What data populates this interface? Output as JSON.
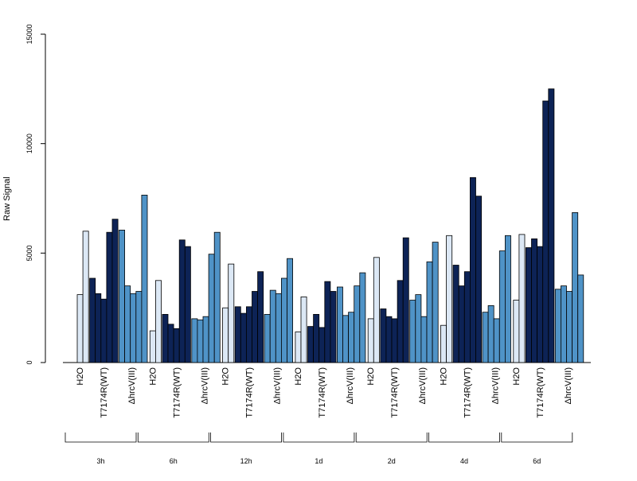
{
  "chart_data": {
    "type": "bar",
    "title": "",
    "xlabel": "",
    "ylabel": "Raw Signal",
    "ylim": [
      0,
      15000
    ],
    "yticks": [
      "0",
      "5000",
      "10000",
      "15000"
    ],
    "grid": false,
    "colors": {
      "H2O": "#dce8f5",
      "T7174R(WT)": "#0d2356",
      "ΔhrcV(III)": "#4f93c7",
      "axis": "#000000"
    },
    "group_labels": [
      "H2O",
      "T7174R(WT)",
      "ΔhrcV(III)"
    ],
    "time_points": [
      "3h",
      "6h",
      "12h",
      "1d",
      "2d",
      "4d",
      "6d"
    ],
    "series": [
      {
        "time": "3h",
        "H2O": [
          3100,
          6000
        ],
        "T7174R(WT)": [
          3850,
          3150,
          2900,
          5950,
          6550
        ],
        "ΔhrcV(III)": [
          6050,
          3500,
          3150,
          3250,
          7650
        ]
      },
      {
        "time": "6h",
        "H2O": [
          1450,
          3750
        ],
        "T7174R(WT)": [
          2200,
          1750,
          1550,
          5600,
          5300
        ],
        "ΔhrcV(III)": [
          2000,
          1950,
          2100,
          4950,
          5950
        ]
      },
      {
        "time": "12h",
        "H2O": [
          2500,
          4500
        ],
        "T7174R(WT)": [
          2550,
          2250,
          2550,
          3250,
          4150
        ],
        "ΔhrcV(III)": [
          2200,
          3300,
          3150,
          3850,
          4750
        ]
      },
      {
        "time": "1d",
        "H2O": [
          1400,
          3000
        ],
        "T7174R(WT)": [
          1650,
          2200,
          1600,
          3700,
          3250
        ],
        "ΔhrcV(III)": [
          3450,
          2150,
          2300,
          3500,
          4100
        ]
      },
      {
        "time": "2d",
        "H2O": [
          2000,
          4800
        ],
        "T7174R(WT)": [
          2450,
          2100,
          2000,
          3750,
          5700
        ],
        "ΔhrcV(III)": [
          2850,
          3100,
          2100,
          4600,
          5500
        ]
      },
      {
        "time": "4d",
        "H2O": [
          1700,
          5800
        ],
        "T7174R(WT)": [
          4450,
          3500,
          4150,
          8450,
          7600
        ],
        "ΔhrcV(III)": [
          2300,
          2600,
          2000,
          5100,
          5800
        ]
      },
      {
        "time": "6d",
        "H2O": [
          2850,
          5850
        ],
        "T7174R(WT)": [
          5250,
          5650,
          5300,
          11950,
          12500
        ],
        "ΔhrcV(III)": [
          3350,
          3500,
          3250,
          6850,
          4000
        ]
      }
    ]
  }
}
